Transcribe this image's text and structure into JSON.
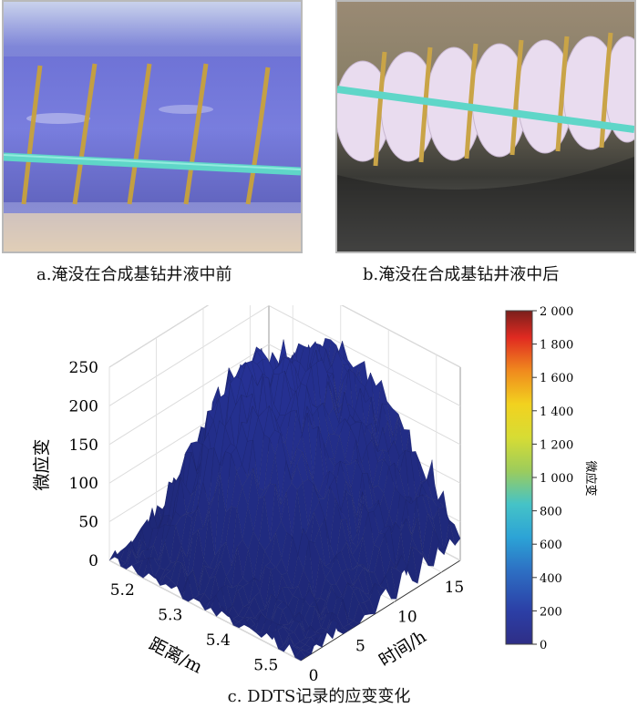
{
  "captions": {
    "a": "a.淹没在合成基钻井液中前",
    "b": "b.淹没在合成基钻井液中后",
    "c": "c. DDTS记录的应变变化"
  },
  "chart_data": {
    "type": "surface3d",
    "title": "",
    "z_label": "微应变",
    "x_label": "距离/m",
    "y_label": "时间/h",
    "colorbar_label": "微应变",
    "z_ticks": [
      "0",
      "50",
      "100",
      "150",
      "200",
      "250"
    ],
    "x_ticks": [
      "5.2",
      "5.3",
      "5.4",
      "5.5"
    ],
    "y_ticks": [
      "0",
      "5",
      "10",
      "15"
    ],
    "colorbar_ticks": [
      "0",
      "200",
      "400",
      "600",
      "800",
      "1 000",
      "1 200",
      "1 400",
      "1 600",
      "1 800",
      "2 000"
    ],
    "zlim": [
      0,
      250
    ],
    "xlim": [
      5.15,
      5.55
    ],
    "ylim": [
      0,
      17
    ],
    "colorbar_range": [
      0,
      2000
    ],
    "colormap": "jet",
    "surface_color": "#2b3a8e",
    "surface_profile": {
      "description_of_axes": "rows = time (h), cols = distance (m), values = microstrain",
      "time_h": [
        0,
        2,
        4,
        6,
        8,
        10,
        12,
        14,
        16,
        17
      ],
      "distance_m": [
        5.15,
        5.2,
        5.25,
        5.3,
        5.35,
        5.4,
        5.45,
        5.5,
        5.55
      ],
      "microstrain": [
        [
          0,
          0,
          0,
          0,
          0,
          0,
          0,
          0,
          0
        ],
        [
          5,
          20,
          30,
          25,
          10,
          5,
          0,
          0,
          0
        ],
        [
          10,
          60,
          120,
          150,
          120,
          60,
          20,
          5,
          0
        ],
        [
          20,
          90,
          180,
          220,
          200,
          140,
          60,
          20,
          5
        ],
        [
          25,
          110,
          200,
          235,
          220,
          170,
          90,
          40,
          10
        ],
        [
          25,
          115,
          190,
          225,
          210,
          165,
          100,
          50,
          15
        ],
        [
          25,
          110,
          180,
          210,
          200,
          160,
          110,
          60,
          20
        ],
        [
          20,
          100,
          170,
          195,
          185,
          150,
          110,
          70,
          25
        ],
        [
          20,
          95,
          160,
          185,
          175,
          145,
          110,
          75,
          30
        ],
        [
          20,
          90,
          155,
          180,
          170,
          140,
          105,
          75,
          30
        ]
      ]
    }
  }
}
